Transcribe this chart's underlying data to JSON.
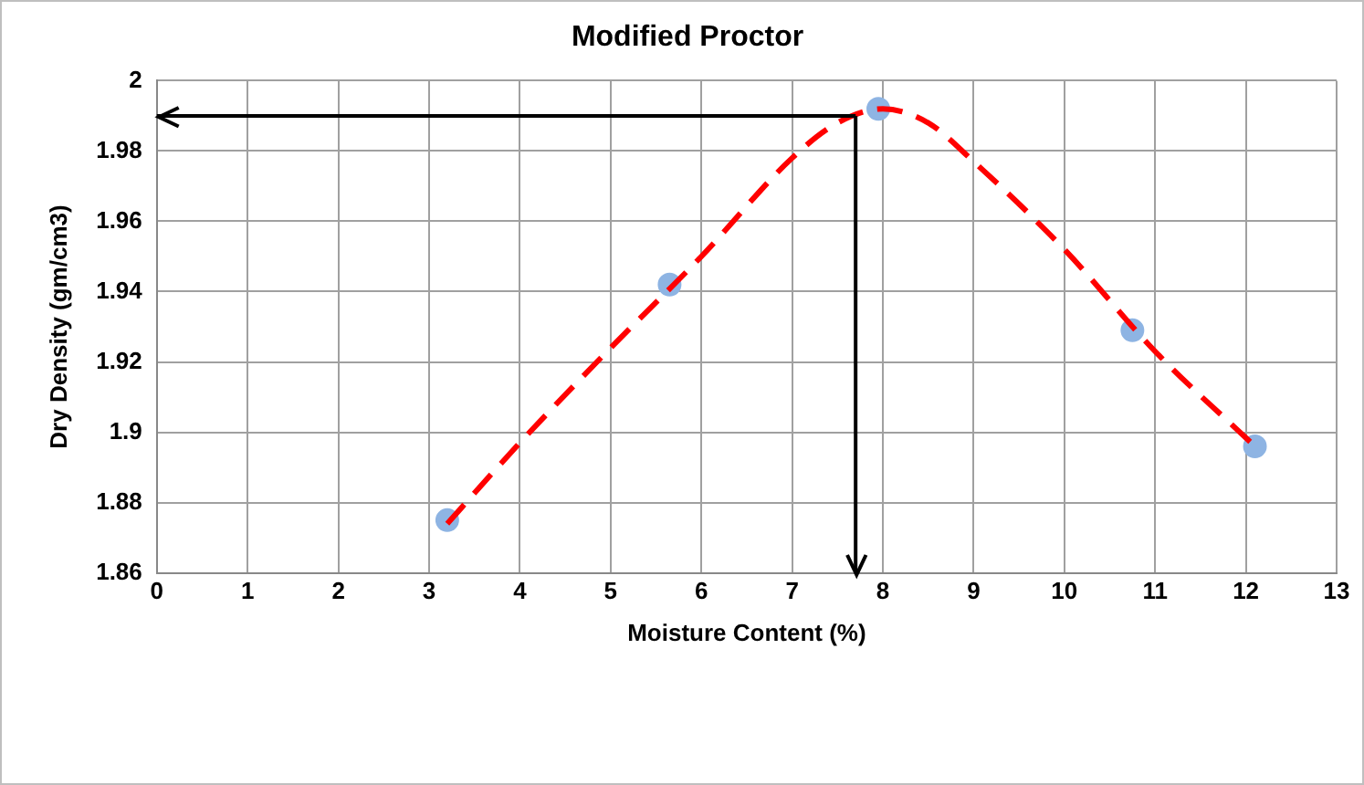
{
  "chart_data": {
    "type": "scatter",
    "title": "Modified Proctor",
    "xlabel": "Moisture Content (%)",
    "ylabel": "Dry Density (gm/cm3)",
    "xlim": [
      0,
      13
    ],
    "xticks": [
      0,
      1,
      2,
      3,
      4,
      5,
      6,
      7,
      8,
      9,
      10,
      11,
      12,
      13
    ],
    "ylim": [
      1.86,
      2
    ],
    "yticks": [
      1.86,
      1.88,
      1.9,
      1.92,
      1.94,
      1.96,
      1.98,
      2
    ],
    "grid": true,
    "series": [
      {
        "type": "line",
        "color": "#ff0000",
        "line_style": "dashed",
        "marker": "none",
        "x": [
          3.2,
          4,
          5,
          6,
          7,
          7.5,
          8,
          8.5,
          9,
          10,
          11,
          12.1
        ],
        "values": [
          1.874,
          1.897,
          1.924,
          1.95,
          1.978,
          1.988,
          1.992,
          1.988,
          1.977,
          1.952,
          1.923,
          1.896
        ]
      },
      {
        "color": "#8eb4e3",
        "marker": "circle",
        "x": [
          3.2,
          5.65,
          7.95,
          10.75,
          12.1
        ],
        "values": [
          1.875,
          1.942,
          1.992,
          1.929,
          1.896
        ]
      }
    ],
    "ref_lines": [
      {
        "axis": "x",
        "value": 7.7,
        "color": "#000000"
      },
      {
        "axis": "y",
        "value": 1.99,
        "color": "#000000"
      }
    ]
  }
}
